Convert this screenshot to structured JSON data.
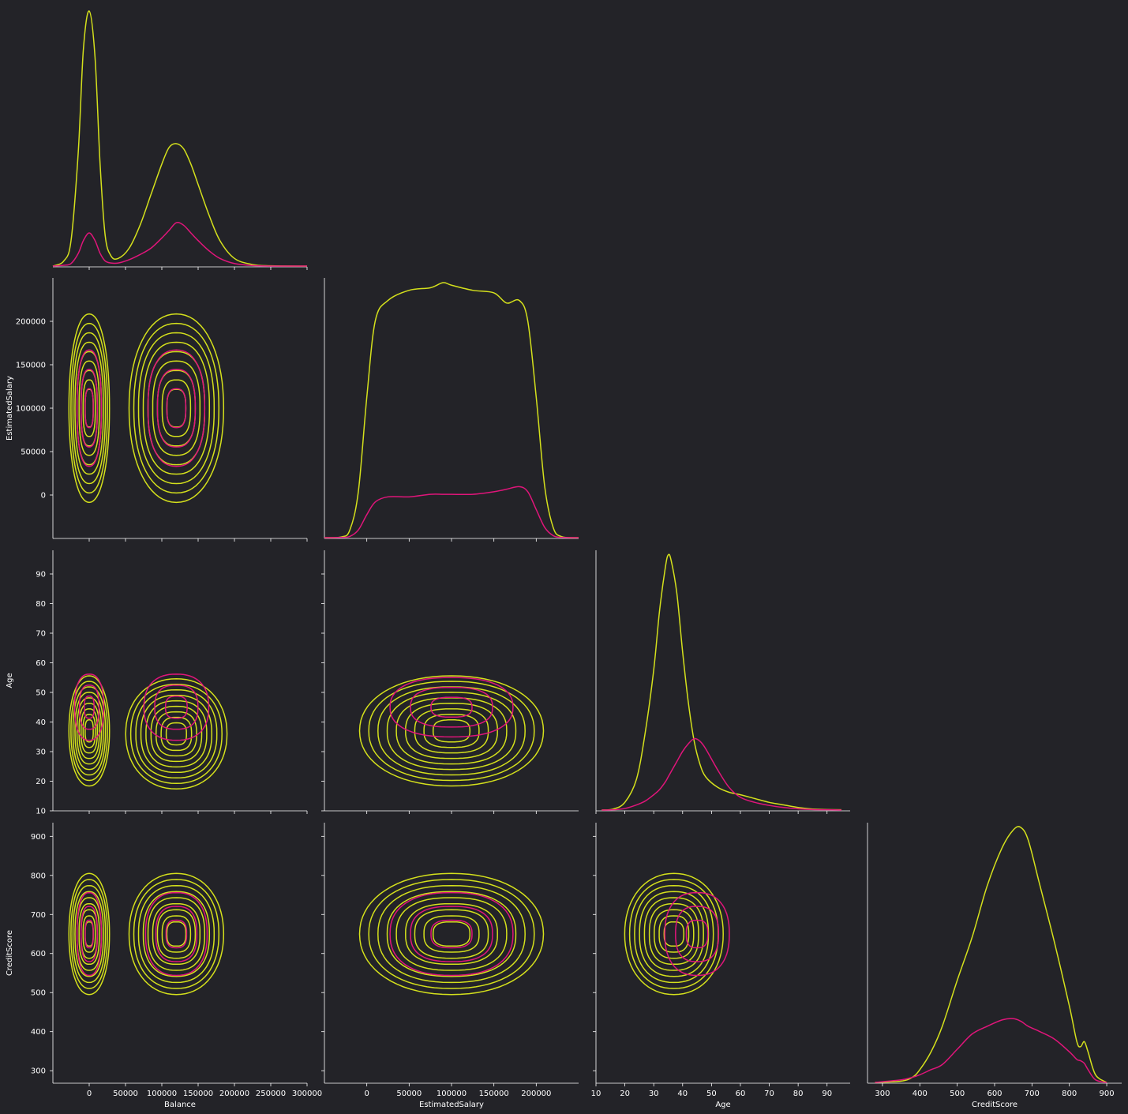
{
  "colors": {
    "background": "#232328",
    "not_exited": "#d4e01c",
    "exited": "#e0157a",
    "axes": "#ffffff"
  },
  "chart_data": {
    "type": "pairplot_kde",
    "variables": [
      "Balance",
      "EstimatedSalary",
      "Age",
      "CreditScore"
    ],
    "series": [
      {
        "name": "",
        "color": "#d4e01c"
      },
      {
        "name": "",
        "color": "#e0157a"
      }
    ],
    "axes": {
      "Balance": {
        "label": "Balance",
        "lim": [
          -50000,
          300000
        ],
        "ticks": [
          0,
          50000,
          100000,
          150000,
          200000,
          250000,
          300000
        ],
        "tick_labels": [
          "0",
          "50000",
          "100000",
          "150000",
          "200000",
          "250000",
          "300000"
        ]
      },
      "EstimatedSalary": {
        "label": "EstimatedSalary",
        "lim_x": [
          -50000,
          250000
        ],
        "lim_y": [
          -50000,
          250000
        ],
        "ticks": [
          0,
          50000,
          100000,
          150000,
          200000
        ],
        "tick_labels": [
          "0",
          "50000",
          "100000",
          "150000",
          "200000"
        ]
      },
      "Age": {
        "label": "Age",
        "lim": [
          10,
          98
        ],
        "ticks": [
          10,
          20,
          30,
          40,
          50,
          60,
          70,
          80,
          90
        ],
        "tick_labels": [
          "10",
          "20",
          "30",
          "40",
          "50",
          "60",
          "70",
          "80",
          "90"
        ]
      },
      "CreditScore": {
        "label": "CreditScore",
        "lim_x": [
          260,
          940
        ],
        "lim_y": [
          268,
          935
        ],
        "ticks": [
          300,
          400,
          500,
          600,
          700,
          800,
          900
        ],
        "tick_labels": [
          "300",
          "400",
          "500",
          "600",
          "700",
          "800",
          "900"
        ]
      }
    },
    "diagonal_kde": {
      "Balance": {
        "x": [
          -50000,
          -35000,
          -25000,
          -15000,
          -8000,
          0,
          8000,
          15000,
          22000,
          30000,
          40000,
          55000,
          70000,
          85000,
          100000,
          110000,
          120000,
          130000,
          140000,
          150000,
          165000,
          180000,
          200000,
          225000,
          250000,
          300000
        ],
        "series0": [
          0,
          0.02,
          0.1,
          0.45,
          0.85,
          1.0,
          0.82,
          0.4,
          0.12,
          0.04,
          0.03,
          0.07,
          0.16,
          0.28,
          0.4,
          0.465,
          0.48,
          0.46,
          0.4,
          0.32,
          0.2,
          0.1,
          0.03,
          0.006,
          0.001,
          0
        ],
        "series1": [
          0,
          0.003,
          0.01,
          0.05,
          0.1,
          0.13,
          0.1,
          0.05,
          0.02,
          0.012,
          0.012,
          0.025,
          0.045,
          0.07,
          0.11,
          0.14,
          0.17,
          0.16,
          0.13,
          0.1,
          0.06,
          0.03,
          0.01,
          0.002,
          0,
          0
        ]
      },
      "EstimatedSalary": {
        "x": [
          -50000,
          -30000,
          -20000,
          -10000,
          0,
          10000,
          25000,
          50000,
          75000,
          90000,
          100000,
          125000,
          150000,
          165000,
          180000,
          190000,
          200000,
          210000,
          220000,
          230000,
          250000
        ],
        "series0": [
          0,
          0.003,
          0.03,
          0.18,
          0.55,
          0.85,
          0.93,
          0.97,
          0.98,
          1.0,
          0.99,
          0.97,
          0.96,
          0.92,
          0.93,
          0.85,
          0.55,
          0.2,
          0.04,
          0.004,
          0
        ],
        "series1": [
          0,
          0.001,
          0.005,
          0.03,
          0.09,
          0.14,
          0.16,
          0.16,
          0.17,
          0.17,
          0.17,
          0.17,
          0.18,
          0.19,
          0.2,
          0.18,
          0.11,
          0.04,
          0.008,
          0.001,
          0
        ]
      },
      "Age": {
        "x": [
          12,
          16,
          20,
          24,
          27,
          30,
          32,
          34,
          35,
          36,
          38,
          40,
          42,
          44,
          46,
          48,
          52,
          56,
          60,
          65,
          70,
          75,
          80,
          85,
          90,
          95
        ],
        "series0": [
          0,
          0.004,
          0.03,
          0.12,
          0.3,
          0.55,
          0.78,
          0.95,
          1.0,
          0.98,
          0.85,
          0.62,
          0.42,
          0.27,
          0.18,
          0.13,
          0.09,
          0.07,
          0.06,
          0.045,
          0.03,
          0.02,
          0.01,
          0.004,
          0.002,
          0.001
        ],
        "series1": [
          0,
          0.001,
          0.006,
          0.02,
          0.035,
          0.06,
          0.08,
          0.11,
          0.13,
          0.15,
          0.19,
          0.23,
          0.26,
          0.28,
          0.27,
          0.24,
          0.16,
          0.09,
          0.05,
          0.03,
          0.018,
          0.01,
          0.005,
          0.002,
          0.001,
          0
        ]
      },
      "CreditScore": {
        "x": [
          280,
          350,
          380,
          400,
          430,
          460,
          500,
          540,
          580,
          620,
          650,
          670,
          690,
          720,
          760,
          800,
          820,
          830,
          840,
          850,
          870,
          900
        ],
        "series0": [
          0,
          0.005,
          0.02,
          0.05,
          0.12,
          0.22,
          0.4,
          0.57,
          0.77,
          0.92,
          0.99,
          1.0,
          0.95,
          0.78,
          0.55,
          0.3,
          0.16,
          0.14,
          0.16,
          0.12,
          0.03,
          0
        ],
        "series1": [
          0,
          0.01,
          0.02,
          0.03,
          0.05,
          0.07,
          0.13,
          0.19,
          0.22,
          0.245,
          0.25,
          0.24,
          0.22,
          0.2,
          0.17,
          0.12,
          0.09,
          0.085,
          0.075,
          0.05,
          0.01,
          0
        ]
      }
    },
    "bivariate_kde_contours": {
      "Balance_vs_EstimatedSalary": {
        "series0_modes": [
          {
            "x": 0,
            "y": 100000,
            "sx": 18000,
            "sy": 70000
          },
          {
            "x": 120000,
            "y": 100000,
            "sx": 42000,
            "sy": 70000
          }
        ],
        "series1_modes": [
          {
            "x": 0,
            "y": 100000,
            "sx": 15000,
            "sy": 60000
          },
          {
            "x": 120000,
            "y": 100000,
            "sx": 35000,
            "sy": 60000
          }
        ]
      },
      "Balance_vs_Age": {
        "series0_modes": [
          {
            "x": 0,
            "y": 37,
            "sx": 18000,
            "sy": 12
          },
          {
            "x": 120000,
            "y": 36,
            "sx": 45000,
            "sy": 12
          }
        ],
        "series1_modes": [
          {
            "x": 0,
            "y": 45,
            "sx": 18000,
            "sy": 10
          },
          {
            "x": 120000,
            "y": 45,
            "sx": 40000,
            "sy": 10
          }
        ]
      },
      "EstimatedSalary_vs_Age": {
        "series0_modes": [
          {
            "x": 100000,
            "y": 37,
            "sx": 70000,
            "sy": 12
          }
        ],
        "series1_modes": [
          {
            "x": 100000,
            "y": 45,
            "sx": 65000,
            "sy": 9
          }
        ]
      },
      "Balance_vs_CreditScore": {
        "series0_modes": [
          {
            "x": 0,
            "y": 650,
            "sx": 18000,
            "sy": 100
          },
          {
            "x": 120000,
            "y": 650,
            "sx": 42000,
            "sy": 100
          }
        ],
        "series1_modes": [
          {
            "x": 0,
            "y": 650,
            "sx": 15000,
            "sy": 95
          },
          {
            "x": 120000,
            "y": 650,
            "sx": 38000,
            "sy": 95
          }
        ]
      },
      "EstimatedSalary_vs_CreditScore": {
        "series0_modes": [
          {
            "x": 100000,
            "y": 650,
            "sx": 70000,
            "sy": 100
          }
        ],
        "series1_modes": [
          {
            "x": 100000,
            "y": 650,
            "sx": 65000,
            "sy": 95
          }
        ]
      },
      "Age_vs_CreditScore": {
        "series0_modes": [
          {
            "x": 37,
            "y": 650,
            "sx": 11,
            "sy": 100
          }
        ],
        "series1_modes": [
          {
            "x": 45,
            "y": 650,
            "sx": 10,
            "sy": 95
          }
        ]
      }
    },
    "grid": false,
    "corner": true
  }
}
